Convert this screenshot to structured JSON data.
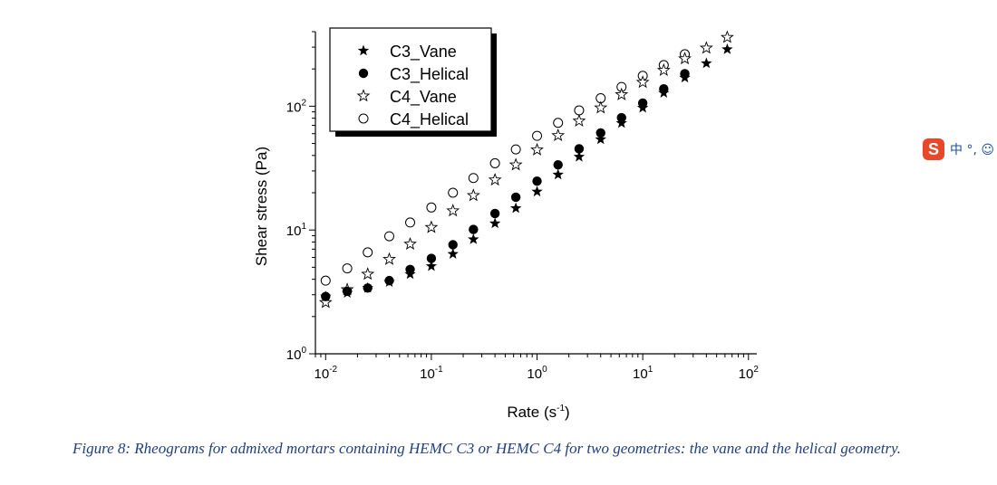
{
  "chart_data": {
    "type": "scatter",
    "x_scale": "log",
    "y_scale": "log",
    "xlabel": {
      "base": "Rate (s",
      "sup": "-1",
      "tail": ")"
    },
    "ylabel": "Shear stress (Pa)",
    "xlim": [
      0.008,
      120
    ],
    "ylim": [
      1,
      400
    ],
    "x_ticks": [
      {
        "value": 0.01,
        "base": "10",
        "exp": "-2"
      },
      {
        "value": 0.1,
        "base": "10",
        "exp": "-1"
      },
      {
        "value": 1,
        "base": "10",
        "exp": "0"
      },
      {
        "value": 10,
        "base": "10",
        "exp": "1"
      },
      {
        "value": 100,
        "base": "10",
        "exp": "2"
      }
    ],
    "y_ticks": [
      {
        "value": 1,
        "base": "10",
        "exp": "0"
      },
      {
        "value": 10,
        "base": "10",
        "exp": "1"
      },
      {
        "value": 100,
        "base": "10",
        "exp": "2"
      }
    ],
    "legend_position": "top-left",
    "series": [
      {
        "name": "C3_Vane",
        "marker": "star-filled",
        "x": [
          0.01,
          0.016,
          0.025,
          0.04,
          0.063,
          0.1,
          0.16,
          0.25,
          0.4,
          0.63,
          1.0,
          1.58,
          2.5,
          4.0,
          6.3,
          10,
          15.8,
          25,
          40,
          63
        ],
        "y": [
          2.9,
          3.1,
          3.4,
          3.8,
          4.4,
          5.1,
          6.4,
          8.4,
          11.3,
          15.0,
          20.4,
          28.0,
          39.0,
          54.0,
          73.0,
          97.0,
          128.0,
          170.0,
          222.0,
          288.0
        ]
      },
      {
        "name": "C3_Helical",
        "marker": "circle-filled",
        "x": [
          0.01,
          0.016,
          0.025,
          0.04,
          0.063,
          0.1,
          0.16,
          0.25,
          0.4,
          0.63,
          1.0,
          1.58,
          2.5,
          4.0,
          6.3,
          10,
          15.8,
          25
        ],
        "y": [
          2.9,
          3.2,
          3.4,
          3.9,
          4.8,
          5.9,
          7.6,
          10.1,
          13.6,
          18.4,
          24.8,
          33.6,
          45.3,
          60.8,
          80.7,
          106.0,
          138.0,
          183.0
        ]
      },
      {
        "name": "C4_Vane",
        "marker": "star-open",
        "x": [
          0.01,
          0.016,
          0.025,
          0.04,
          0.063,
          0.1,
          0.16,
          0.25,
          0.4,
          0.63,
          1.0,
          1.58,
          2.5,
          4.0,
          6.3,
          10,
          15.8,
          25,
          40,
          63
        ],
        "y": [
          2.6,
          3.3,
          4.4,
          5.8,
          7.7,
          10.5,
          14.3,
          19.0,
          25.4,
          33.6,
          44.4,
          58.0,
          76.0,
          97.0,
          124.0,
          156.0,
          195.0,
          242.0,
          295.0,
          360.0
        ]
      },
      {
        "name": "C4_Helical",
        "marker": "circle-open",
        "x": [
          0.01,
          0.016,
          0.025,
          0.04,
          0.063,
          0.1,
          0.16,
          0.25,
          0.4,
          0.63,
          1.0,
          1.58,
          2.5,
          4.0,
          6.3,
          10,
          15.8,
          25
        ],
        "y": [
          3.9,
          4.9,
          6.6,
          8.9,
          11.5,
          15.2,
          20.0,
          26.3,
          34.6,
          44.8,
          57.6,
          73.4,
          92.6,
          116.0,
          143.0,
          176.0,
          215.0,
          263.0
        ]
      }
    ]
  },
  "caption": "Figure 8: Rheograms for admixed mortars containing HEMC C3 or HEMC C4 for two geometries: the vane and the helical geometry.",
  "ime_toolbar": {
    "logo": "S",
    "items": "中 °, ☺"
  }
}
